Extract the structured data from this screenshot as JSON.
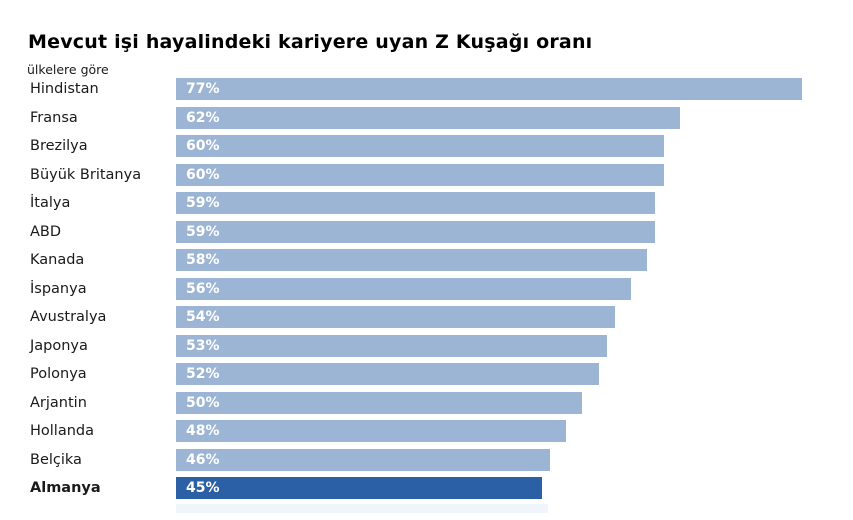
{
  "title": "Mevcut işi hayalindeki kariyere uyan Z Kuşağı oranı",
  "subtitle": "ülkelere göre",
  "chart_data": {
    "type": "bar",
    "orientation": "horizontal",
    "title": "Mevcut işi hayalindeki kariyere uyan Z Kuşağı oranı",
    "subtitle": "ülkelere göre",
    "categories": [
      "Hindistan",
      "Fransa",
      "Brezilya",
      "Büyük Britanya",
      "İtalya",
      "ABD",
      "Kanada",
      "İspanya",
      "Avustralya",
      "Japonya",
      "Polonya",
      "Arjantin",
      "Hollanda",
      "Belçika",
      "Almanya"
    ],
    "values": [
      77,
      62,
      60,
      60,
      59,
      59,
      58,
      56,
      54,
      53,
      52,
      50,
      48,
      46,
      45
    ],
    "value_labels": [
      "77%",
      "62%",
      "60%",
      "60%",
      "59%",
      "59%",
      "58%",
      "56%",
      "54%",
      "53%",
      "52%",
      "50%",
      "48%",
      "46%",
      "45%"
    ],
    "highlight_category": "Almanya",
    "highlight_index": 14,
    "xlim": [
      0,
      80
    ],
    "grid": false,
    "legend": "none",
    "value_labels_position": "inside-start",
    "colors": {
      "bar": "#9cb5d5",
      "highlight_bar": "#2b5fa6",
      "value_label_text": "#ffffff",
      "title_text": "#000000",
      "category_label_text": "#1a1a1a"
    }
  }
}
